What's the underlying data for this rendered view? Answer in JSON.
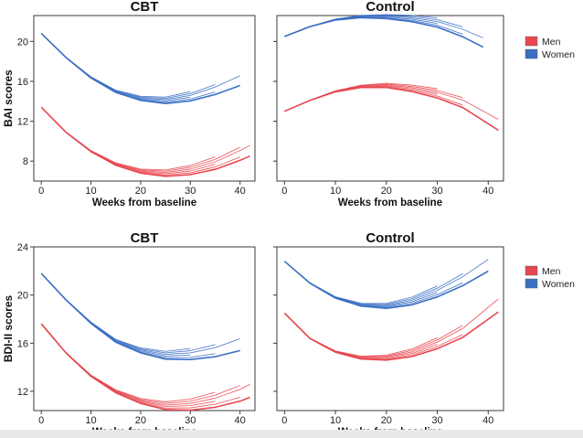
{
  "figure": {
    "panels": [
      {
        "id": "bai-cbt",
        "title": "CBT",
        "row": 0,
        "col": 0
      },
      {
        "id": "bai-control",
        "title": "Control",
        "row": 0,
        "col": 1
      },
      {
        "id": "bdi-cbt",
        "title": "CBT",
        "row": 1,
        "col": 0
      },
      {
        "id": "bdi-control",
        "title": "Control",
        "row": 1,
        "col": 1
      }
    ],
    "rows": [
      {
        "ylabel": "BAI scores",
        "yticks": [
          8,
          12,
          16,
          20
        ],
        "ylim": [
          6,
          22.6
        ]
      },
      {
        "ylabel": "BDI-II scores",
        "yticks": [
          12,
          16,
          20,
          24
        ],
        "ylim": [
          10.4,
          24
        ]
      }
    ],
    "xlabel": "Weeks from baseline",
    "xticks": [
      0,
      10,
      20,
      30,
      40
    ],
    "xlim": [
      -1.5,
      43
    ],
    "legend": [
      {
        "label": "Men",
        "color": "#e8474f"
      },
      {
        "label": "Women",
        "color": "#3a6fc4"
      }
    ]
  },
  "chart_data": [
    {
      "type": "line",
      "title": "CBT",
      "xlabel": "Weeks from baseline",
      "ylabel": "BAI scores",
      "xlim": [
        -1.5,
        43
      ],
      "ylim": [
        6,
        22.6
      ],
      "series": [
        {
          "name": "Women",
          "color": "#3a6fc4",
          "x": [
            0,
            5,
            10,
            15,
            20,
            25,
            30,
            35,
            40
          ],
          "values": [
            20.8,
            18.4,
            16.4,
            15.0,
            14.3,
            14.1,
            14.5,
            15.3,
            16.4
          ]
        },
        {
          "name": "Men",
          "color": "#e8474f",
          "x": [
            0,
            5,
            10,
            15,
            20,
            25,
            30,
            35,
            40,
            42
          ],
          "values": [
            13.4,
            10.9,
            9.0,
            7.7,
            7.0,
            6.8,
            7.1,
            7.8,
            8.9,
            9.4
          ]
        }
      ]
    },
    {
      "type": "line",
      "title": "Control",
      "xlabel": "Weeks from baseline",
      "ylabel": "BAI scores",
      "xlim": [
        -1.5,
        43
      ],
      "ylim": [
        6,
        22.6
      ],
      "series": [
        {
          "name": "Women",
          "color": "#3a6fc4",
          "x": [
            0,
            5,
            10,
            15,
            20,
            25,
            30,
            35,
            39
          ],
          "values": [
            20.5,
            21.5,
            22.2,
            22.5,
            22.5,
            22.3,
            21.9,
            21.1,
            20.2
          ]
        },
        {
          "name": "Men",
          "color": "#e8474f",
          "x": [
            0,
            5,
            10,
            15,
            20,
            25,
            30,
            35,
            42
          ],
          "values": [
            13.0,
            14.1,
            15.0,
            15.5,
            15.6,
            15.3,
            14.8,
            14.0,
            12.0
          ]
        }
      ]
    },
    {
      "type": "line",
      "title": "CBT",
      "xlabel": "Weeks from baseline",
      "ylabel": "BDI-II scores",
      "xlim": [
        -1.5,
        43
      ],
      "ylim": [
        10.4,
        24
      ],
      "series": [
        {
          "name": "Women",
          "color": "#3a6fc4",
          "x": [
            0,
            5,
            10,
            15,
            20,
            25,
            30,
            35,
            40
          ],
          "values": [
            21.8,
            19.6,
            17.7,
            16.2,
            15.4,
            15.0,
            15.1,
            15.5,
            16.2
          ]
        },
        {
          "name": "Men",
          "color": "#e8474f",
          "x": [
            0,
            5,
            10,
            15,
            20,
            25,
            30,
            35,
            40,
            42
          ],
          "values": [
            17.6,
            15.2,
            13.3,
            12.0,
            11.2,
            10.8,
            10.9,
            11.3,
            12.0,
            12.4
          ]
        }
      ]
    },
    {
      "type": "line",
      "title": "Control",
      "xlabel": "Weeks from baseline",
      "ylabel": "BDI-II scores",
      "xlim": [
        -1.5,
        43
      ],
      "ylim": [
        10.4,
        24
      ],
      "series": [
        {
          "name": "Women",
          "color": "#3a6fc4",
          "x": [
            0,
            5,
            10,
            15,
            20,
            25,
            30,
            35,
            40
          ],
          "values": [
            22.8,
            21.0,
            19.8,
            19.2,
            19.1,
            19.5,
            20.3,
            21.4,
            22.8
          ]
        },
        {
          "name": "Men",
          "color": "#e8474f",
          "x": [
            0,
            5,
            10,
            15,
            20,
            25,
            30,
            35,
            42
          ],
          "values": [
            18.5,
            16.4,
            15.3,
            14.8,
            14.8,
            15.2,
            16.0,
            17.1,
            19.5
          ]
        }
      ]
    }
  ]
}
